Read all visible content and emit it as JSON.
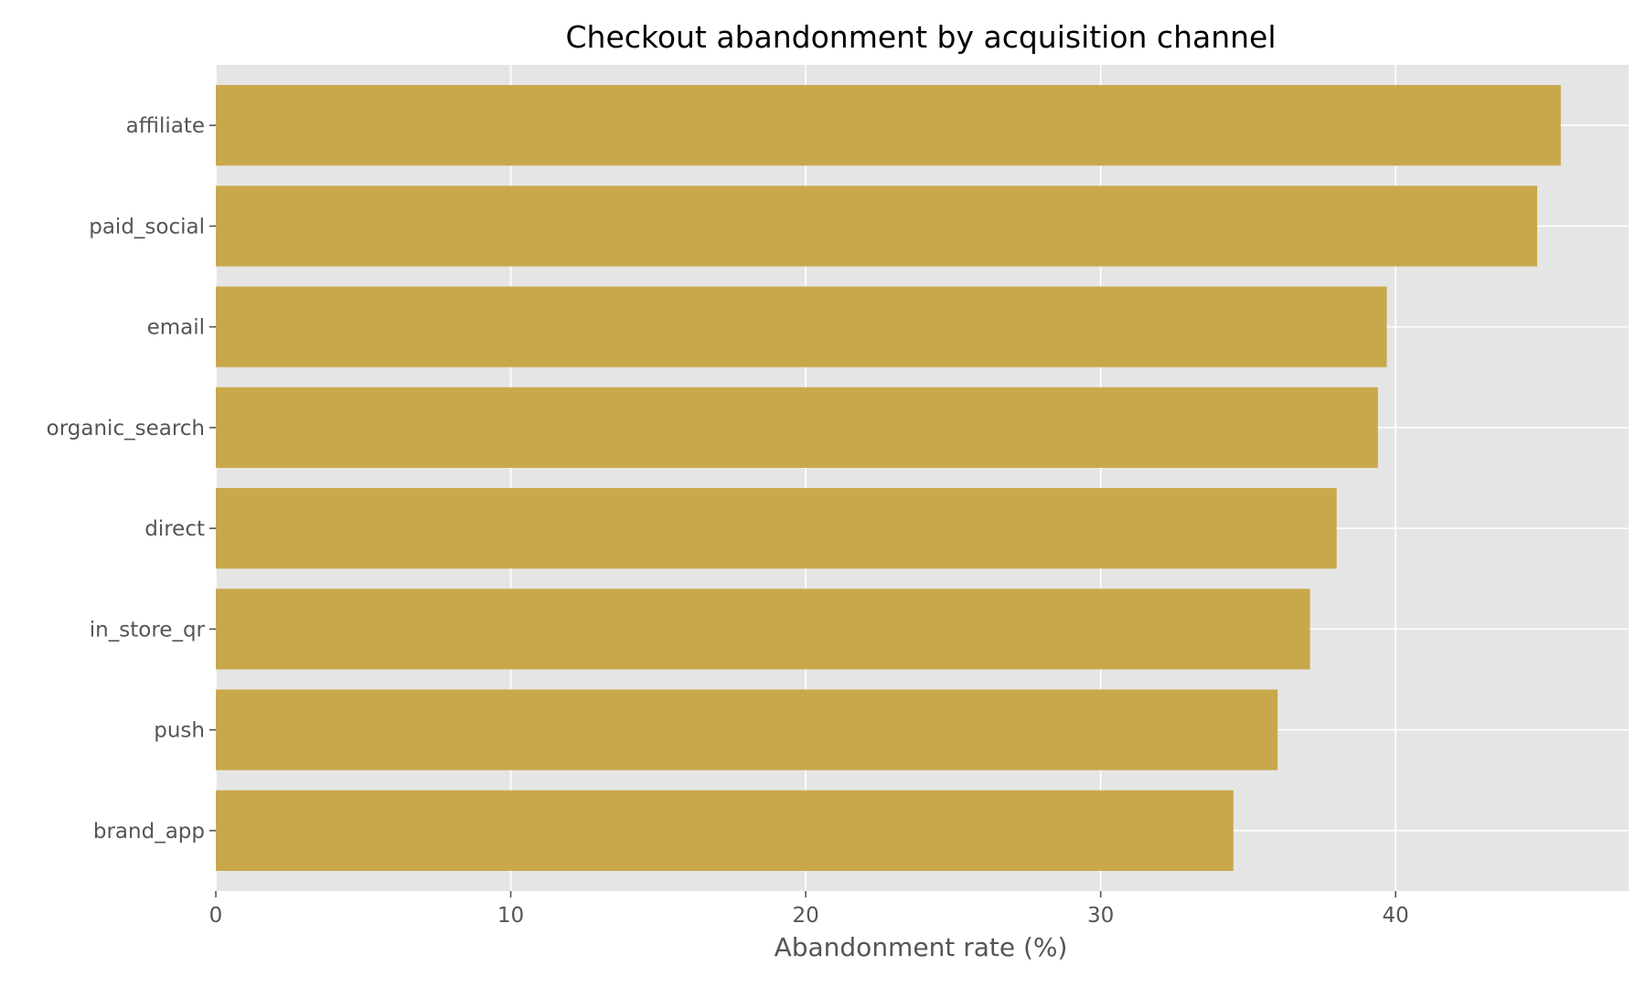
{
  "chart_data": {
    "type": "bar",
    "orientation": "horizontal",
    "title": "Checkout abandonment by acquisition channel",
    "xlabel": "Abandonment rate (%)",
    "ylabel": "",
    "categories": [
      "affiliate",
      "paid_social",
      "email",
      "organic_search",
      "direct",
      "in_store_qr",
      "push",
      "brand_app"
    ],
    "values": [
      45.6,
      44.8,
      39.7,
      39.4,
      38.0,
      37.1,
      36.0,
      34.5
    ],
    "xlim": [
      0,
      47.9
    ],
    "xticks": [
      0,
      10,
      20,
      30,
      40
    ],
    "grid": true,
    "bar_color": "#c9a84c",
    "plot_background": "#e5e5e5"
  }
}
